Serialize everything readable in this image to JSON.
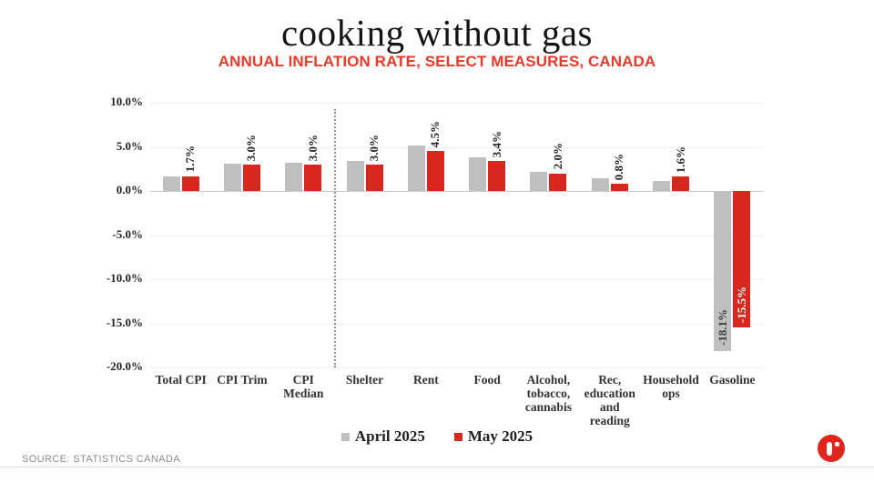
{
  "header": {
    "title": "cooking without gas",
    "subtitle": "ANNUAL INFLATION RATE, SELECT MEASURES, CANADA"
  },
  "chart_data": {
    "type": "bar",
    "title": "cooking without gas",
    "subtitle": "ANNUAL INFLATION RATE, SELECT MEASURES, CANADA",
    "ylim": [
      -20,
      10
    ],
    "grid": true,
    "legend_position": "bottom",
    "y_ticks": [
      {
        "value": 10,
        "label": "10.0%"
      },
      {
        "value": 5,
        "label": "5.0%"
      },
      {
        "value": 0,
        "label": "0.0%"
      },
      {
        "value": -5,
        "label": "-5.0%"
      },
      {
        "value": -10,
        "label": "-10.0%"
      },
      {
        "value": -15,
        "label": "-15.0%"
      },
      {
        "value": -20,
        "label": "-20.0%"
      }
    ],
    "categories": [
      {
        "lines": [
          "Total CPI"
        ]
      },
      {
        "lines": [
          "CPI Trim"
        ]
      },
      {
        "lines": [
          "CPI",
          "Median"
        ]
      },
      {
        "lines": [
          "Shelter"
        ]
      },
      {
        "lines": [
          "Rent"
        ]
      },
      {
        "lines": [
          "Food"
        ]
      },
      {
        "lines": [
          "Alcohol,",
          "tobacco,",
          "cannabis"
        ]
      },
      {
        "lines": [
          "Rec,",
          "education",
          "and",
          "reading"
        ]
      },
      {
        "lines": [
          "Household",
          "ops"
        ]
      },
      {
        "lines": [
          "Gasoline"
        ]
      }
    ],
    "series": [
      {
        "name": "April 2025",
        "color": "#bfbfbf",
        "values": [
          1.7,
          3.1,
          3.2,
          3.4,
          5.2,
          3.8,
          2.2,
          1.4,
          1.1,
          -18.1
        ]
      },
      {
        "name": "May 2025",
        "color": "#d7271e",
        "values": [
          1.7,
          3.0,
          3.0,
          3.0,
          4.5,
          3.4,
          2.0,
          0.8,
          1.6,
          -15.5
        ]
      }
    ],
    "bar_labels": [
      {
        "category": 0,
        "series": 1,
        "text": "1.7%"
      },
      {
        "category": 1,
        "series": 1,
        "text": "3.0%"
      },
      {
        "category": 2,
        "series": 1,
        "text": "3.0%"
      },
      {
        "category": 3,
        "series": 1,
        "text": "3.0%"
      },
      {
        "category": 4,
        "series": 1,
        "text": "4.5%"
      },
      {
        "category": 5,
        "series": 1,
        "text": "3.4%"
      },
      {
        "category": 6,
        "series": 1,
        "text": "2.0%"
      },
      {
        "category": 7,
        "series": 1,
        "text": "0.8%"
      },
      {
        "category": 8,
        "series": 1,
        "text": "1.6%"
      },
      {
        "category": 9,
        "series": 0,
        "text": "-18.1%",
        "inside": true,
        "color": "#404040"
      },
      {
        "category": 9,
        "series": 1,
        "text": "-15.5%",
        "inside": true,
        "color": "#ffffff"
      }
    ],
    "divider_after_category": 2
  },
  "colors": {
    "april_bar": "#bfbfbf",
    "may_bar": "#d7271e",
    "subtitle_red": "#e8392a",
    "logo_red": "#e0251f"
  },
  "footer": {
    "source": "SOURCE: STATISTICS CANADA"
  },
  "icons": {
    "logo": "reuters-logo"
  }
}
